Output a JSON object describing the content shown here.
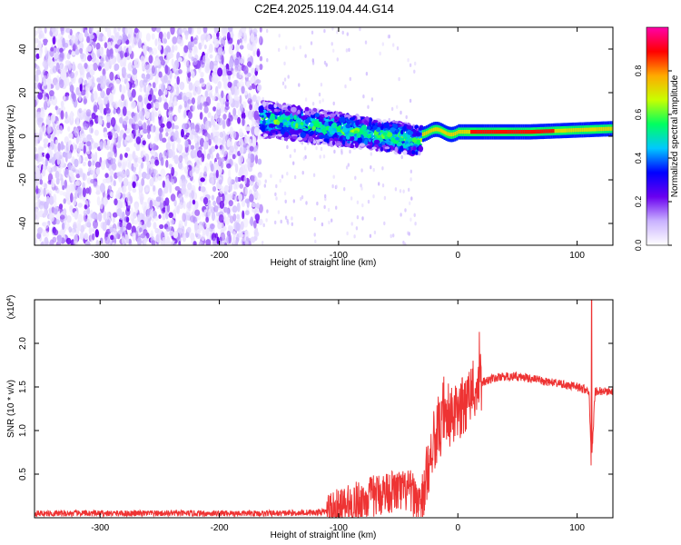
{
  "title": "C2E4.2025.119.04.44.G14",
  "chart_data": [
    {
      "type": "heatmap",
      "xlabel": "Height of straight line (km)",
      "ylabel": "Frequency (Hz)",
      "xlim": [
        -355,
        130
      ],
      "ylim": [
        -50,
        50
      ],
      "xticks": [
        -300,
        -200,
        -100,
        0,
        100
      ],
      "yticks": [
        -40,
        -20,
        0,
        20,
        40
      ],
      "colorbar": {
        "label": "Normalized spectral amplitude",
        "range": [
          0,
          1
        ],
        "ticks": [
          0.0,
          0.2,
          0.4,
          0.6,
          0.8
        ],
        "tick_labels": [
          "0.0",
          "0.2",
          "0.4",
          "0.6",
          "0.8"
        ],
        "colormap": [
          "#ffffff",
          "#c9b2ff",
          "#6a00f0",
          "#0000ff",
          "#00c8ff",
          "#00ff60",
          "#c8ff00",
          "#ffaa00",
          "#ff0000",
          "#ff00aa"
        ]
      },
      "regions": [
        {
          "x_range": [
            -355,
            -165
          ],
          "y_range": [
            -50,
            50
          ],
          "amplitude": "0.05-0.25 scattered noise"
        },
        {
          "x_range": [
            -165,
            -30
          ],
          "center_freq_from": 8,
          "center_freq_to": -2,
          "amplitude": "0.2-0.6 band"
        },
        {
          "x_range": [
            -30,
            130
          ],
          "center_freq": 2,
          "amplitude": "0.7-0.9 narrow tone"
        }
      ]
    },
    {
      "type": "line",
      "xlabel": "Height of straight line (km)",
      "ylabel": "SNR (10 * v/v)",
      "multiplier_label": "(x10",
      "multiplier_exp": "4",
      "multiplier_close": ")",
      "xlim": [
        -355,
        130
      ],
      "ylim": [
        0,
        2.5
      ],
      "xticks": [
        -300,
        -200,
        -100,
        0,
        100
      ],
      "yticks": [
        0.5,
        1.0,
        1.5,
        2.0
      ],
      "ytick_labels": [
        "0.5",
        "1.0",
        "1.5",
        "2.0"
      ],
      "series_color": "#ee3333",
      "x": [
        -355,
        -300,
        -200,
        -150,
        -120,
        -100,
        -80,
        -60,
        -40,
        -30,
        -25,
        -20,
        -15,
        -10,
        0,
        10,
        20,
        30,
        40,
        50,
        60,
        70,
        80,
        90,
        100,
        105,
        110,
        112,
        115,
        120,
        130
      ],
      "y": [
        0.05,
        0.05,
        0.05,
        0.05,
        0.06,
        0.08,
        0.2,
        0.3,
        0.3,
        0.15,
        0.6,
        0.9,
        1.0,
        1.1,
        1.2,
        1.4,
        1.55,
        1.6,
        1.62,
        1.62,
        1.6,
        1.57,
        1.55,
        1.52,
        1.5,
        1.48,
        1.45,
        0.6,
        1.45,
        1.45,
        1.45
      ]
    }
  ]
}
